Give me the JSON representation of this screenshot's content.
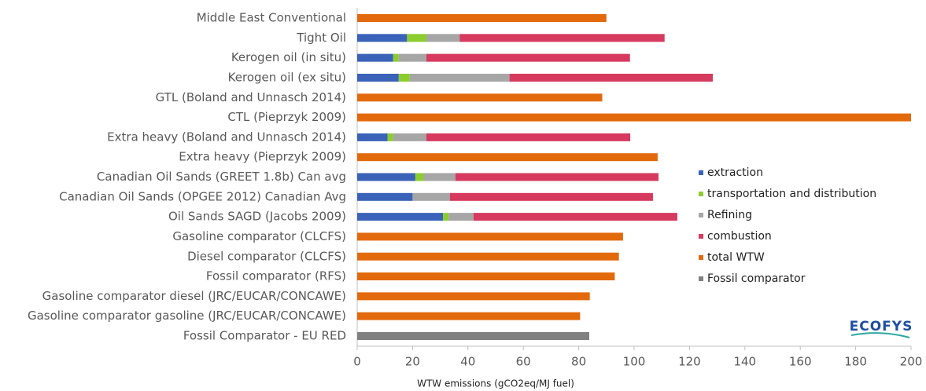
{
  "chart_data": {
    "type": "stacked_barh",
    "categories": [
      "Middle East Conventional",
      "Tight Oil",
      "Kerogen oil (in situ)",
      "Kerogen oil (ex situ)",
      "GTL (Boland and Unnasch 2014)",
      "CTL (Pieprzyk 2009)",
      "Extra heavy (Boland and Unnasch 2014)",
      "Extra heavy (Pieprzyk  2009)",
      "Canadian Oil Sands (GREET 1.8b) Can avg",
      "Canadian Oil Sands (OPGEE 2012) Canadian Avg",
      "Oil Sands SAGD (Jacobs 2009)",
      "Gasoline comparator (CLCFS) ",
      "Diesel comparator (CLCFS)",
      "Fossil comparator (RFS)",
      "Gasoline comparator diesel (JRC/EUCAR/CONCAWE)",
      "Gasoline comparator gasoline (JRC/EUCAR/CONCAWE)",
      "Fossil Comparator - EU RED"
    ],
    "series": [
      {
        "name": "extraction",
        "color": "#3a62b8",
        "values": [
          null,
          18,
          13,
          15,
          null,
          null,
          11,
          null,
          21,
          20,
          31,
          null,
          null,
          null,
          null,
          null,
          null
        ]
      },
      {
        "name": "transportation and distribution",
        "color": "#8ccc2e",
        "values": [
          null,
          7,
          2,
          4,
          null,
          null,
          2,
          null,
          3,
          null,
          2,
          null,
          null,
          null,
          null,
          null,
          null
        ]
      },
      {
        "name": "Refining",
        "color": "#a6a6a6",
        "values": [
          null,
          12,
          10,
          36,
          null,
          null,
          12,
          null,
          11.5,
          13.5,
          9,
          null,
          null,
          null,
          null,
          null,
          null
        ]
      },
      {
        "name": "combustion",
        "color": "#d63a5e",
        "values": [
          null,
          74,
          73.5,
          73.4,
          null,
          null,
          73.6,
          null,
          73.3,
          73.3,
          73.6,
          null,
          null,
          null,
          null,
          null,
          null
        ]
      },
      {
        "name": "total WTW",
        "color": "#e36a0c",
        "values": [
          90,
          null,
          null,
          null,
          88.5,
          200,
          null,
          108.5,
          null,
          null,
          null,
          96,
          94.5,
          93,
          84,
          80.5,
          null
        ]
      },
      {
        "name": "Fossil comparator",
        "color": "#808080",
        "values": [
          null,
          null,
          null,
          null,
          null,
          null,
          null,
          null,
          null,
          null,
          null,
          null,
          null,
          null,
          null,
          null,
          83.8
        ]
      }
    ],
    "xlabel": "WTW emissions (gCO2eq/MJ fuel)",
    "xlim": [
      0,
      200
    ],
    "xticks": [
      0,
      20,
      40,
      60,
      80,
      100,
      120,
      140,
      160,
      180,
      200
    ],
    "legend": "right",
    "logo": "ECOFYS"
  }
}
